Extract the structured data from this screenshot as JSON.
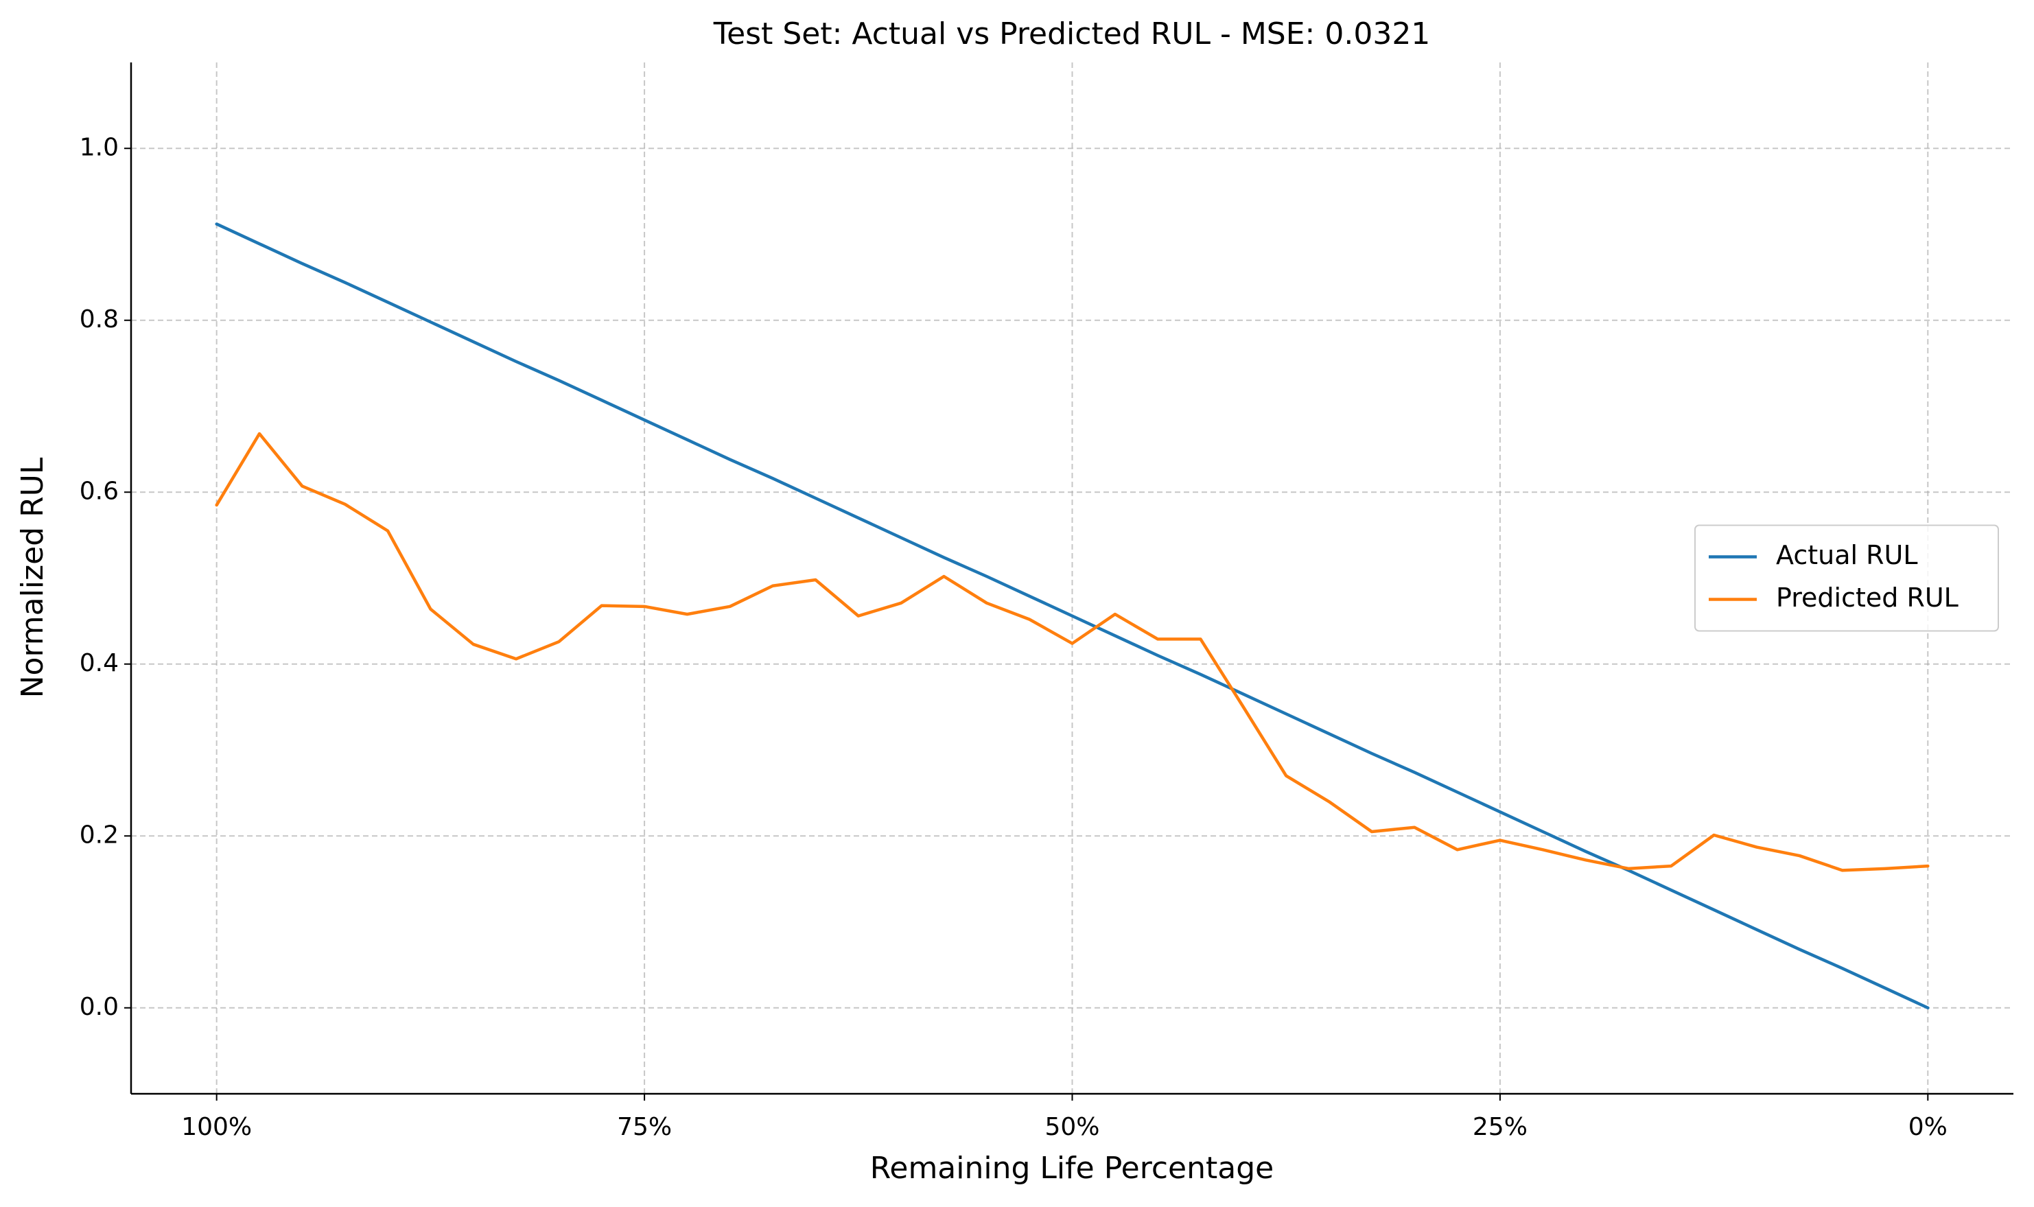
{
  "chart_data": {
    "type": "line",
    "title": "Test Set: Actual vs Predicted RUL - MSE: 0.0321",
    "x_label": "Remaining Life Percentage",
    "y_label": "Normalized RUL",
    "x": [
      100,
      97.5,
      95,
      92.5,
      90,
      87.5,
      85,
      82.5,
      80,
      77.5,
      75,
      72.5,
      70,
      67.5,
      65,
      62.5,
      60,
      57.5,
      55,
      52.5,
      50,
      47.5,
      45,
      42.5,
      40,
      37.5,
      35,
      32.5,
      30,
      27.5,
      25,
      22.5,
      20,
      17.5,
      15,
      12.5,
      10,
      7.5,
      5,
      2.5,
      0
    ],
    "series": [
      {
        "name": "Actual RUL",
        "color": "#1f77b4",
        "values": [
          0.912,
          0.889,
          0.866,
          0.844,
          0.821,
          0.798,
          0.775,
          0.752,
          0.73,
          0.707,
          0.684,
          0.661,
          0.638,
          0.616,
          0.593,
          0.57,
          0.547,
          0.524,
          0.502,
          0.479,
          0.456,
          0.433,
          0.41,
          0.388,
          0.365,
          0.342,
          0.319,
          0.296,
          0.274,
          0.251,
          0.228,
          0.205,
          0.182,
          0.16,
          0.137,
          0.114,
          0.091,
          0.068,
          0.046,
          0.023,
          0.0
        ]
      },
      {
        "name": "Predicted RUL",
        "color": "#ff7f0e",
        "values": [
          0.585,
          0.668,
          0.607,
          0.586,
          0.555,
          0.464,
          0.423,
          0.406,
          0.426,
          0.468,
          0.467,
          0.458,
          0.467,
          0.491,
          0.498,
          0.456,
          0.471,
          0.502,
          0.471,
          0.452,
          0.424,
          0.458,
          0.429,
          0.429,
          0.35,
          0.27,
          0.24,
          0.205,
          0.21,
          0.184,
          0.195,
          0.184,
          0.172,
          0.162,
          0.165,
          0.201,
          0.187,
          0.177,
          0.16,
          0.162,
          0.165
        ]
      }
    ],
    "xlim": [
      105,
      -5
    ],
    "ylim": [
      -0.1,
      1.1
    ],
    "xticks": [
      {
        "value": 100,
        "label": "100%"
      },
      {
        "value": 75,
        "label": "75%"
      },
      {
        "value": 50,
        "label": "50%"
      },
      {
        "value": 25,
        "label": "25%"
      },
      {
        "value": 0,
        "label": "0%"
      }
    ],
    "yticks": [
      {
        "value": 0,
        "label": "0.0"
      },
      0.2,
      0.4,
      0.6,
      0.8,
      {
        "value": 1,
        "label": "1.0"
      }
    ],
    "grid": true,
    "legend": "center right"
  }
}
